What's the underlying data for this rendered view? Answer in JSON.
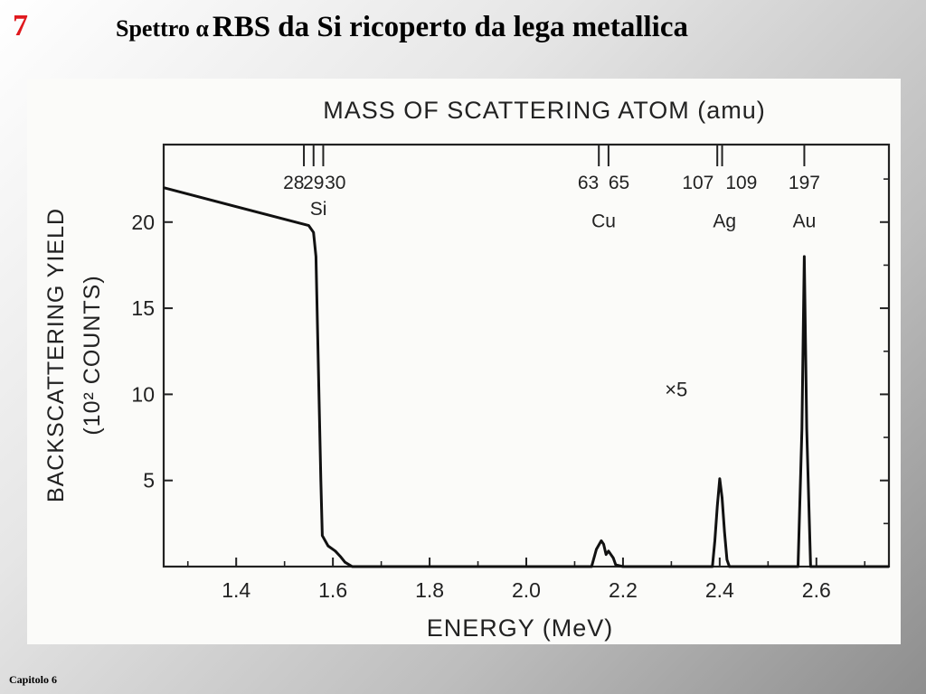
{
  "slide": {
    "number": "7",
    "title_prefix": "Spettro α",
    "title_main": "RBS da Si ricoperto da lega metallica",
    "footer": "Capitolo  6"
  },
  "chart_data": {
    "type": "line",
    "xlabel": "ENERGY (MeV)",
    "ylabel_line1": "BACKSCATTERING YIELD",
    "ylabel_line2": "(10² COUNTS)",
    "top_axis_label": "MASS OF SCATTERING ATOM (amu)",
    "xlim": [
      1.25,
      2.75
    ],
    "ylim": [
      0,
      24.5
    ],
    "x_ticks": [
      1.4,
      1.6,
      1.8,
      2.0,
      2.2,
      2.4,
      2.6
    ],
    "x_tick_labels": [
      "1.4",
      "1.6",
      "1.8",
      "2.0",
      "2.2",
      "2.4",
      "2.6"
    ],
    "y_ticks": [
      5,
      10,
      15,
      20
    ],
    "y_tick_labels": [
      "5",
      "10",
      "15",
      "20"
    ],
    "mass_ticks": [
      {
        "mass": "28",
        "energy": 1.54
      },
      {
        "mass": "29",
        "energy": 1.56
      },
      {
        "mass": "30",
        "energy": 1.58
      },
      {
        "mass": "63",
        "energy": 2.15
      },
      {
        "mass": "65",
        "energy": 2.17
      },
      {
        "mass": "107",
        "energy": 2.395
      },
      {
        "mass": "109",
        "energy": 2.405
      },
      {
        "mass": "197",
        "energy": 2.575
      }
    ],
    "element_labels": [
      {
        "text": "Si",
        "energy": 1.57,
        "y": 20.4
      },
      {
        "text": "Cu",
        "energy": 2.16,
        "y": 19.7
      },
      {
        "text": "Ag",
        "energy": 2.41,
        "y": 19.7
      },
      {
        "text": "Au",
        "energy": 2.575,
        "y": 19.7
      }
    ],
    "annotation": {
      "text": "×5",
      "energy": 2.31,
      "y": 9.9
    },
    "series": [
      {
        "x": [
          1.25,
          1.55,
          1.56,
          1.565,
          1.575,
          1.578,
          1.59,
          1.605,
          1.615,
          1.625,
          1.64,
          1.66,
          1.7,
          1.9,
          2.1,
          2.135,
          2.145,
          2.155,
          2.16,
          2.165,
          2.17,
          2.18,
          2.185,
          2.2,
          2.35,
          2.385,
          2.39,
          2.395,
          2.4,
          2.405,
          2.41,
          2.415,
          2.42,
          2.55,
          2.562,
          2.57,
          2.575,
          2.58,
          2.588,
          2.62,
          2.75
        ],
        "y": [
          22.0,
          19.8,
          19.4,
          18.0,
          5.0,
          1.8,
          1.2,
          0.9,
          0.6,
          0.25,
          0.0,
          0.0,
          0.0,
          0.0,
          0.0,
          0.0,
          1.0,
          1.5,
          1.3,
          0.7,
          0.9,
          0.5,
          0.1,
          0.0,
          0.0,
          0.0,
          1.5,
          3.5,
          5.1,
          4.0,
          2.0,
          0.4,
          0.0,
          0.0,
          0.0,
          8.0,
          18.0,
          8.0,
          0.0,
          0.0,
          0.0
        ]
      }
    ]
  }
}
